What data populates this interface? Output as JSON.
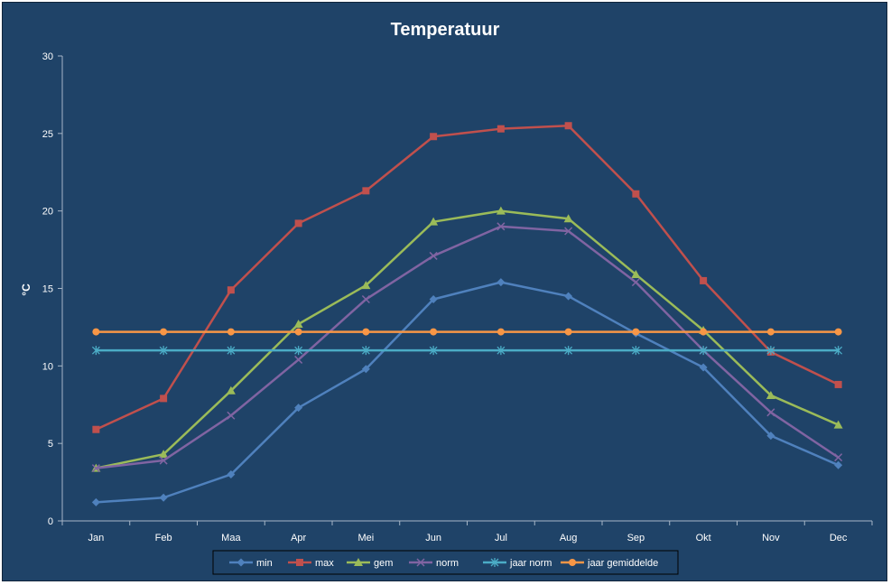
{
  "chart_data": {
    "type": "line",
    "title": "Temperatuur",
    "xlabel": "",
    "ylabel": "°C",
    "ylim": [
      0,
      30
    ],
    "yticks": [
      0,
      5,
      10,
      15,
      20,
      25,
      30
    ],
    "categories": [
      "Jan",
      "Feb",
      "Maa",
      "Apr",
      "Mei",
      "Jun",
      "Jul",
      "Aug",
      "Sep",
      "Okt",
      "Nov",
      "Dec"
    ],
    "grid": false,
    "legend_position": "bottom",
    "series": [
      {
        "name": "min",
        "color": "#4F81BD",
        "marker": "diamond",
        "values": [
          1.2,
          1.5,
          3.0,
          7.3,
          9.8,
          14.3,
          15.4,
          14.5,
          12.1,
          9.9,
          5.5,
          3.6
        ]
      },
      {
        "name": "max",
        "color": "#C0504D",
        "marker": "square",
        "values": [
          5.9,
          7.9,
          14.9,
          19.2,
          21.3,
          24.8,
          25.3,
          25.5,
          21.1,
          15.5,
          10.9,
          8.8
        ]
      },
      {
        "name": "gem",
        "color": "#9BBB59",
        "marker": "triangle",
        "values": [
          3.4,
          4.3,
          8.4,
          12.7,
          15.2,
          19.3,
          20.0,
          19.5,
          15.9,
          12.3,
          8.1,
          6.2
        ]
      },
      {
        "name": "norm",
        "color": "#8064A2",
        "marker": "x",
        "values": [
          3.4,
          3.9,
          6.8,
          10.4,
          14.3,
          17.1,
          19.0,
          18.7,
          15.4,
          11.0,
          7.0,
          4.1
        ]
      },
      {
        "name": "jaar norm",
        "color": "#4BACC6",
        "marker": "star",
        "values": [
          11.0,
          11.0,
          11.0,
          11.0,
          11.0,
          11.0,
          11.0,
          11.0,
          11.0,
          11.0,
          11.0,
          11.0
        ]
      },
      {
        "name": "jaar gemiddelde",
        "color": "#F79646",
        "marker": "circle",
        "values": [
          12.2,
          12.2,
          12.2,
          12.2,
          12.2,
          12.2,
          12.2,
          12.2,
          12.2,
          12.2,
          12.2,
          12.2
        ]
      }
    ]
  }
}
